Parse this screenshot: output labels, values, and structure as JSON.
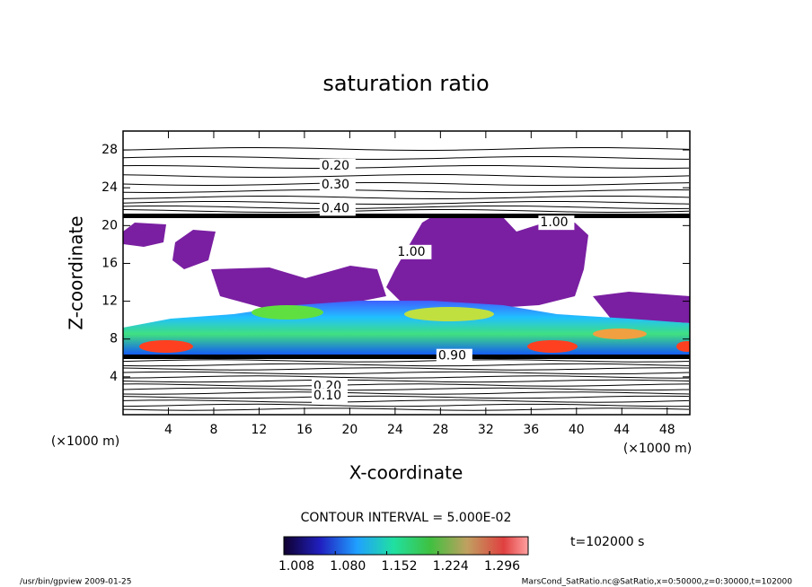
{
  "chart_data": {
    "type": "contour",
    "title": "saturation ratio",
    "xlabel": "X-coordinate",
    "ylabel": "Z-coordinate",
    "x_unit": "(×1000 m)",
    "y_unit": "(×1000 m)",
    "xlim": [
      0,
      50
    ],
    "xticks": [
      4,
      8,
      12,
      16,
      20,
      24,
      28,
      32,
      36,
      40,
      44,
      48
    ],
    "ylim": [
      0,
      30
    ],
    "yticks": [
      4,
      8,
      12,
      16,
      20,
      24,
      28
    ],
    "contour_interval": "CONTOUR INTERVAL = 5.000E-02",
    "contour_labels": [
      {
        "text": "0.20",
        "x": 17.5,
        "z": 26.3
      },
      {
        "text": "0.30",
        "x": 17.5,
        "z": 24.3
      },
      {
        "text": "0.40",
        "x": 17.5,
        "z": 21.8
      },
      {
        "text": "1.00",
        "x": 36.8,
        "z": 20.3
      },
      {
        "text": "1.00",
        "x": 24.2,
        "z": 17.2
      },
      {
        "text": "0.90",
        "x": 27.8,
        "z": 6.2
      },
      {
        "text": "0.20",
        "x": 16.8,
        "z": 3.0
      },
      {
        "text": "0.10",
        "x": 16.8,
        "z": 2.0
      }
    ],
    "clim": [
      1.008,
      1.35
    ],
    "cticks": [
      {
        "value": 1.008,
        "label": "1.008"
      },
      {
        "value": 1.08,
        "label": "1.080"
      },
      {
        "value": 1.152,
        "label": "1.152"
      },
      {
        "value": 1.224,
        "label": "1.224"
      },
      {
        "value": 1.296,
        "label": "1.296"
      }
    ],
    "time": "t=102000 s",
    "footer_left": "/usr/bin/gpview  2009-01-25",
    "footer_right": "MarsCond_SatRatio.nc@SatRatio,x=0:50000,z=0:30000,t=102000"
  }
}
